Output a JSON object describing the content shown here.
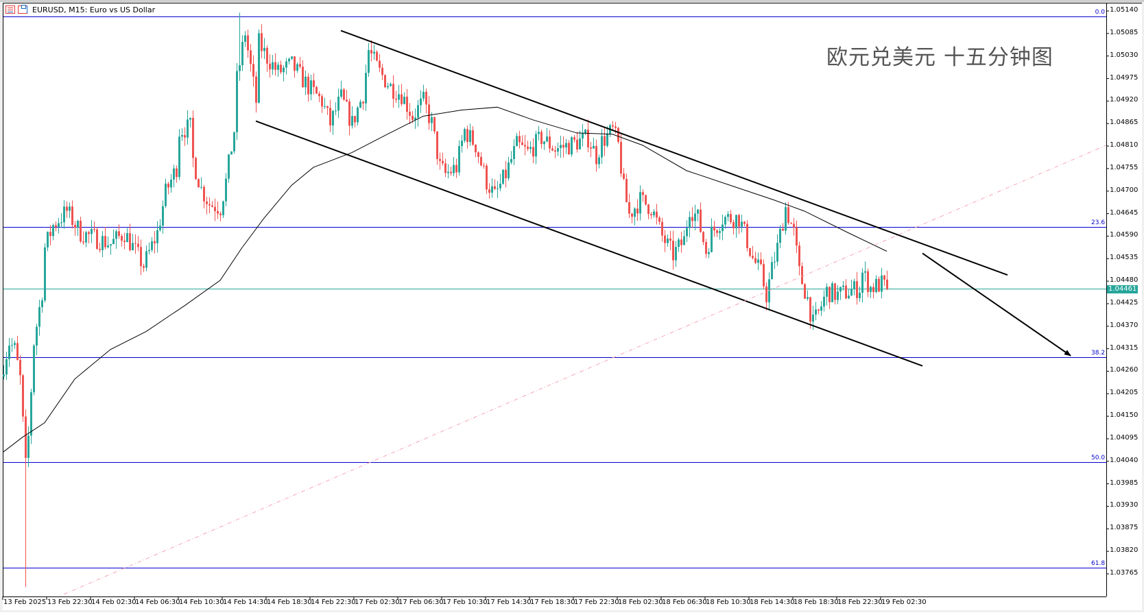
{
  "window": {
    "title": "EURUSD, M15:  Euro vs US Dollar",
    "watermark": "欧元兑美元 十五分钟图",
    "icons": [
      "list-icon",
      "chart-window-icon"
    ]
  },
  "chart_data": {
    "type": "candlestick",
    "symbol": "EURUSD",
    "timeframe": "M15",
    "colors": {
      "bull": "#26a69a",
      "bear": "#ef5350",
      "fib": "#0000cc",
      "ma": "#000000",
      "current": "#26a69a",
      "diagonal": "#f4a6b4",
      "trendline": "#000000"
    },
    "ylim": [
      1.037,
      1.0516
    ],
    "y_ticks": [
      "1.05140",
      "1.05085",
      "1.05030",
      "1.04975",
      "1.04920",
      "1.04865",
      "1.04810",
      "1.04755",
      "1.04700",
      "1.04645",
      "1.04590",
      "1.04535",
      "1.04480",
      "1.04425",
      "1.04370",
      "1.04315",
      "1.04260",
      "1.04205",
      "1.04150",
      "1.04095",
      "1.04040",
      "1.03985",
      "1.03930",
      "1.03875",
      "1.03820",
      "1.03765"
    ],
    "x_ticks": [
      {
        "bar": 0,
        "label": "13 Feb 2025"
      },
      {
        "bar": 16,
        "label": "13 Feb 22:30"
      },
      {
        "bar": 32,
        "label": "14 Feb 02:30"
      },
      {
        "bar": 48,
        "label": "14 Feb 06:30"
      },
      {
        "bar": 64,
        "label": "14 Feb 10:30"
      },
      {
        "bar": 80,
        "label": "14 Feb 14:30"
      },
      {
        "bar": 96,
        "label": "14 Feb 18:30"
      },
      {
        "bar": 112,
        "label": "14 Feb 22:30"
      },
      {
        "bar": 128,
        "label": "17 Feb 02:30"
      },
      {
        "bar": 144,
        "label": "17 Feb 06:30"
      },
      {
        "bar": 160,
        "label": "17 Feb 10:30"
      },
      {
        "bar": 176,
        "label": "17 Feb 14:30"
      },
      {
        "bar": 192,
        "label": "17 Feb 18:30"
      },
      {
        "bar": 208,
        "label": "17 Feb 22:30"
      },
      {
        "bar": 224,
        "label": "18 Feb 02:30"
      },
      {
        "bar": 240,
        "label": "18 Feb 06:30"
      },
      {
        "bar": 256,
        "label": "18 Feb 10:30"
      },
      {
        "bar": 272,
        "label": "18 Feb 14:30"
      },
      {
        "bar": 288,
        "label": "18 Feb 18:30"
      },
      {
        "bar": 304,
        "label": "18 Feb 22:30"
      },
      {
        "bar": 320,
        "label": "19 Feb 02:30"
      }
    ],
    "current_price": "1.04461",
    "close_path": [
      [
        0,
        1.04277
      ],
      [
        2,
        1.04331
      ],
      [
        4,
        1.04313
      ],
      [
        6,
        1.04241
      ],
      [
        8,
        1.04027
      ],
      [
        9,
        1.04099
      ],
      [
        11,
        1.04331
      ],
      [
        14,
        1.04455
      ],
      [
        15,
        1.04562
      ],
      [
        18,
        1.04616
      ],
      [
        23,
        1.04651
      ],
      [
        28,
        1.04598
      ],
      [
        39,
        1.04571
      ],
      [
        44,
        1.04598
      ],
      [
        51,
        1.04518
      ],
      [
        56,
        1.04598
      ],
      [
        59,
        1.04696
      ],
      [
        63,
        1.04758
      ],
      [
        64,
        1.04848
      ],
      [
        68,
        1.04856
      ],
      [
        69,
        1.04776
      ],
      [
        72,
        1.04705
      ],
      [
        75,
        1.04669
      ],
      [
        79,
        1.0466
      ],
      [
        81,
        1.04723
      ],
      [
        84,
        1.04848
      ],
      [
        85,
        1.04972
      ],
      [
        88,
        1.05088
      ],
      [
        89,
        1.05044
      ],
      [
        92,
        1.04919
      ],
      [
        93,
        1.05062
      ],
      [
        96,
        1.05026
      ],
      [
        100,
        1.0499
      ],
      [
        105,
        1.05008
      ],
      [
        111,
        1.04955
      ],
      [
        116,
        1.04919
      ],
      [
        119,
        1.04865
      ],
      [
        123,
        1.04928
      ],
      [
        127,
        1.04865
      ],
      [
        131,
        1.04937
      ],
      [
        133,
        1.05044
      ],
      [
        137,
        1.0499
      ],
      [
        141,
        1.04955
      ],
      [
        145,
        1.04937
      ],
      [
        149,
        1.04883
      ],
      [
        153,
        1.04919
      ],
      [
        156,
        1.04865
      ],
      [
        159,
        1.04758
      ],
      [
        161,
        1.04741
      ],
      [
        165,
        1.04758
      ],
      [
        168,
        1.04848
      ],
      [
        172,
        1.04812
      ],
      [
        176,
        1.04723
      ],
      [
        179,
        1.04687
      ],
      [
        183,
        1.04741
      ],
      [
        187,
        1.04812
      ],
      [
        191,
        1.04794
      ],
      [
        196,
        1.0483
      ],
      [
        201,
        1.04803
      ],
      [
        206,
        1.04812
      ],
      [
        213,
        1.0483
      ],
      [
        216,
        1.04785
      ],
      [
        218,
        1.04821
      ],
      [
        222,
        1.04848
      ],
      [
        224,
        1.04812
      ],
      [
        226,
        1.04705
      ],
      [
        228,
        1.04643
      ],
      [
        232,
        1.04678
      ],
      [
        236,
        1.0466
      ],
      [
        240,
        1.04589
      ],
      [
        244,
        1.04544
      ],
      [
        248,
        1.0458
      ],
      [
        250,
        1.0466
      ],
      [
        253,
        1.04634
      ],
      [
        256,
        1.04553
      ],
      [
        258,
        1.04598
      ],
      [
        262,
        1.04634
      ],
      [
        268,
        1.04634
      ],
      [
        270,
        1.04598
      ],
      [
        273,
        1.04536
      ],
      [
        276,
        1.045
      ],
      [
        278,
        1.04446
      ],
      [
        280,
        1.04509
      ],
      [
        282,
        1.04562
      ],
      [
        285,
        1.0466
      ],
      [
        288,
        1.04598
      ],
      [
        290,
        1.045
      ],
      [
        293,
        1.04437
      ],
      [
        295,
        1.04375
      ],
      [
        297,
        1.04402
      ],
      [
        300,
        1.04455
      ],
      [
        304,
        1.04446
      ],
      [
        308,
        1.04455
      ],
      [
        312,
        1.04464
      ],
      [
        313,
        1.045
      ],
      [
        316,
        1.04464
      ],
      [
        320,
        1.04473
      ],
      [
        322,
        1.04461
      ]
    ],
    "extremes": [
      {
        "bar": 8,
        "low": 1.03733
      },
      {
        "bar": 86,
        "high": 1.05136
      }
    ],
    "moving_average": [
      [
        0,
        1.04063
      ],
      [
        7,
        1.04099
      ],
      [
        15,
        1.04134
      ],
      [
        26,
        1.04241
      ],
      [
        39,
        1.04313
      ],
      [
        52,
        1.04357
      ],
      [
        66,
        1.0442
      ],
      [
        79,
        1.04482
      ],
      [
        87,
        1.04562
      ],
      [
        95,
        1.04634
      ],
      [
        105,
        1.04714
      ],
      [
        113,
        1.04758
      ],
      [
        127,
        1.04794
      ],
      [
        140,
        1.04839
      ],
      [
        153,
        1.04883
      ],
      [
        167,
        1.04898
      ],
      [
        180,
        1.04905
      ],
      [
        193,
        1.04874
      ],
      [
        209,
        1.04842
      ],
      [
        222,
        1.04839
      ],
      [
        233,
        1.04812
      ],
      [
        249,
        1.0475
      ],
      [
        265,
        1.04714
      ],
      [
        281,
        1.04678
      ],
      [
        292,
        1.04651
      ],
      [
        308,
        1.04598
      ],
      [
        322,
        1.04553
      ]
    ],
    "fibonacci": [
      {
        "level": "0.0",
        "price": 1.05127
      },
      {
        "level": "23.6",
        "price": 1.04612
      },
      {
        "level": "38.2",
        "price": 1.04294
      },
      {
        "level": "50.0",
        "price": 1.04038
      },
      {
        "level": "61.8",
        "price": 1.0378
      }
    ],
    "trendlines": [
      {
        "name": "channel-upper",
        "from": [
          123,
          1.05092
        ],
        "to": [
          366,
          1.04495
        ]
      },
      {
        "name": "channel-lower",
        "from": [
          92,
          1.04871
        ],
        "to": [
          335,
          1.04273
        ]
      },
      {
        "name": "forecast-arrow",
        "from": [
          335,
          1.04548
        ],
        "to": [
          389,
          1.04298
        ],
        "arrow": true
      },
      {
        "name": "diagonal-dashdot",
        "from": [
          22,
          1.03715
        ],
        "to": [
          402,
          1.04812
        ],
        "dashed": true
      }
    ]
  }
}
